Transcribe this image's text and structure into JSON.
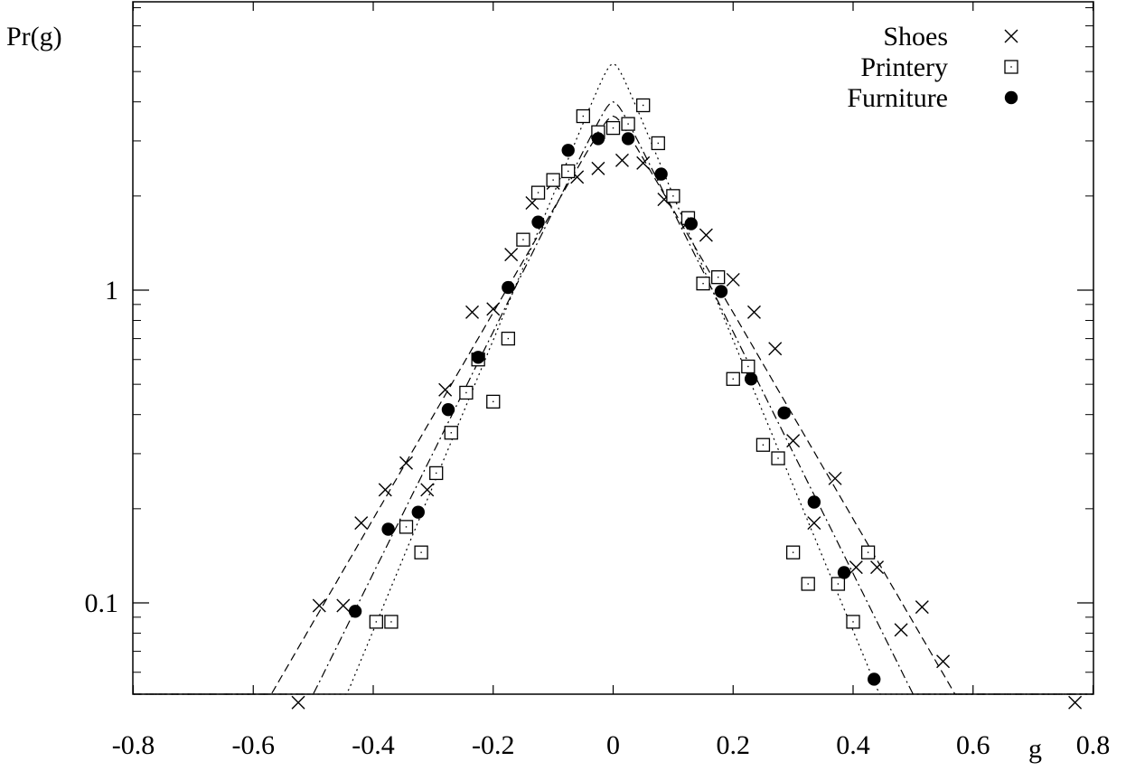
{
  "chart_data": {
    "type": "scatter",
    "title": "",
    "xlabel": "g",
    "ylabel": "Pr(g)",
    "xlim": [
      -0.8,
      0.8
    ],
    "ylim": [
      0.045,
      8
    ],
    "y_scale": "log",
    "grid": false,
    "legend_position": "top-right",
    "x_ticks": [
      {
        "value": -0.8,
        "label": "-0.8"
      },
      {
        "value": -0.6,
        "label": "-0.6"
      },
      {
        "value": -0.4,
        "label": "-0.4"
      },
      {
        "value": -0.2,
        "label": "-0.2"
      },
      {
        "value": 0,
        "label": "0"
      },
      {
        "value": 0.2,
        "label": "0.2"
      },
      {
        "value": 0.4,
        "label": "0.4"
      },
      {
        "value": 0.6,
        "label": "0.6"
      },
      {
        "value": 0.8,
        "label": "0.8"
      }
    ],
    "y_ticks": [
      {
        "value": 0.1,
        "label": "0.1"
      },
      {
        "value": 1,
        "label": "1"
      }
    ],
    "series": [
      {
        "name": "Shoes",
        "marker": "cross",
        "points": [
          [
            -0.525,
            0.048
          ],
          [
            -0.49,
            0.098
          ],
          [
            -0.45,
            0.098
          ],
          [
            -0.42,
            0.18
          ],
          [
            -0.38,
            0.23
          ],
          [
            -0.345,
            0.28
          ],
          [
            -0.31,
            0.23
          ],
          [
            -0.28,
            0.48
          ],
          [
            -0.235,
            0.85
          ],
          [
            -0.2,
            0.87
          ],
          [
            -0.17,
            1.3
          ],
          [
            -0.135,
            1.9
          ],
          [
            -0.1,
            2.2
          ],
          [
            -0.06,
            2.3
          ],
          [
            -0.025,
            2.45
          ],
          [
            0.015,
            2.6
          ],
          [
            0.05,
            2.55
          ],
          [
            0.085,
            1.95
          ],
          [
            0.125,
            1.65
          ],
          [
            0.155,
            1.5
          ],
          [
            0.2,
            1.08
          ],
          [
            0.235,
            0.85
          ],
          [
            0.27,
            0.65
          ],
          [
            0.3,
            0.33
          ],
          [
            0.335,
            0.18
          ],
          [
            0.37,
            0.25
          ],
          [
            0.405,
            0.13
          ],
          [
            0.44,
            0.13
          ],
          [
            0.48,
            0.082
          ],
          [
            0.515,
            0.097
          ],
          [
            0.55,
            0.065
          ],
          [
            0.77,
            0.048
          ]
        ]
      },
      {
        "name": "Printery",
        "marker": "open-square",
        "points": [
          [
            -0.395,
            0.087
          ],
          [
            -0.37,
            0.087
          ],
          [
            -0.345,
            0.175
          ],
          [
            -0.32,
            0.145
          ],
          [
            -0.295,
            0.26
          ],
          [
            -0.27,
            0.35
          ],
          [
            -0.245,
            0.47
          ],
          [
            -0.225,
            0.6
          ],
          [
            -0.2,
            0.44
          ],
          [
            -0.175,
            0.7
          ],
          [
            -0.15,
            1.45
          ],
          [
            -0.125,
            2.05
          ],
          [
            -0.1,
            2.25
          ],
          [
            -0.075,
            2.4
          ],
          [
            -0.05,
            3.6
          ],
          [
            -0.025,
            3.2
          ],
          [
            0,
            3.3
          ],
          [
            0.025,
            3.4
          ],
          [
            0.05,
            3.9
          ],
          [
            0.075,
            2.95
          ],
          [
            0.1,
            2.0
          ],
          [
            0.125,
            1.7
          ],
          [
            0.15,
            1.05
          ],
          [
            0.175,
            1.1
          ],
          [
            0.2,
            0.52
          ],
          [
            0.225,
            0.57
          ],
          [
            0.25,
            0.32
          ],
          [
            0.275,
            0.29
          ],
          [
            0.3,
            0.145
          ],
          [
            0.325,
            0.115
          ],
          [
            0.375,
            0.115
          ],
          [
            0.4,
            0.087
          ],
          [
            0.425,
            0.145
          ]
        ]
      },
      {
        "name": "Furniture",
        "marker": "filled-circle",
        "points": [
          [
            -0.43,
            0.094
          ],
          [
            -0.375,
            0.172
          ],
          [
            -0.325,
            0.195
          ],
          [
            -0.275,
            0.415
          ],
          [
            -0.225,
            0.61
          ],
          [
            -0.175,
            1.02
          ],
          [
            -0.125,
            1.65
          ],
          [
            -0.075,
            2.8
          ],
          [
            -0.025,
            3.05
          ],
          [
            0.025,
            3.05
          ],
          [
            0.08,
            2.35
          ],
          [
            0.13,
            1.63
          ],
          [
            0.18,
            0.99
          ],
          [
            0.23,
            0.52
          ],
          [
            0.285,
            0.405
          ],
          [
            0.335,
            0.21
          ],
          [
            0.385,
            0.125
          ],
          [
            0.435,
            0.057
          ]
        ]
      }
    ],
    "fit_curves": [
      {
        "style": "dashed",
        "peak": 3.6,
        "slope": 7.6
      },
      {
        "style": "dash-dot",
        "peak": 4.0,
        "slope": 8.9
      },
      {
        "style": "dotted",
        "peak": 5.3,
        "slope": 10.7
      }
    ]
  }
}
